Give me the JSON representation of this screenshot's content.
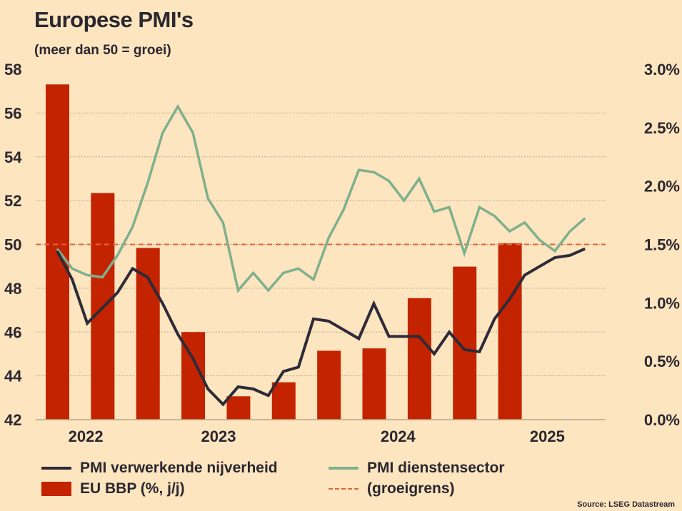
{
  "chart_data": {
    "type": "bar+line",
    "title": "Europese PMI's",
    "subtitle": "(meer dan 50 = groei)",
    "left_axis": {
      "ylim": [
        42,
        58
      ],
      "ticks": [
        "58",
        "56",
        "54",
        "52",
        "50",
        "48",
        "46",
        "44",
        "42"
      ]
    },
    "right_axis": {
      "ylim": [
        0,
        3
      ],
      "ticks": [
        "3.0%",
        "2.5%",
        "2.0%",
        "1.5%",
        "1.0%",
        "0.5%",
        "0.0%"
      ]
    },
    "x_tick_labels": [
      "2022",
      "2023",
      "2024",
      "2025"
    ],
    "grid": true,
    "threshold": {
      "name": "(groeigrens)",
      "value": 50
    },
    "bars": {
      "name": "EU BBP (%, j/j)",
      "color": "#c42300",
      "values": [
        2.87,
        1.94,
        1.47,
        0.75,
        0.2,
        0.32,
        0.59,
        0.61,
        1.04,
        1.31,
        1.51
      ]
    },
    "series": [
      {
        "name": "PMI verwerkende nijverheid",
        "color": "#2e2a38",
        "values": [
          49.7,
          48.4,
          46.4,
          47.1,
          47.8,
          48.9,
          48.5,
          47.3,
          45.9,
          44.8,
          43.4,
          42.7,
          43.5,
          43.4,
          43.1,
          44.2,
          44.4,
          46.6,
          46.5,
          46.1,
          45.7,
          47.3,
          45.8,
          45.8,
          45.8,
          45.0,
          46.0,
          45.2,
          45.1,
          46.6,
          47.5,
          48.6,
          49.0,
          49.4,
          49.5,
          49.8
        ]
      },
      {
        "name": "PMI dienstensector",
        "color": "#7fb08e",
        "values": [
          49.8,
          48.9,
          48.6,
          48.5,
          49.5,
          50.8,
          52.8,
          55.1,
          56.3,
          55.1,
          52.1,
          51.0,
          47.9,
          48.7,
          47.9,
          48.7,
          48.9,
          48.4,
          50.3,
          51.6,
          53.4,
          53.3,
          52.9,
          52.0,
          53.0,
          51.5,
          51.7,
          49.6,
          51.7,
          51.3,
          50.6,
          51.0,
          50.2,
          49.7,
          50.6,
          51.2
        ]
      }
    ],
    "legend_placement": "bottom"
  },
  "legend": {
    "manufacturing": "PMI verwerkende nijverheid",
    "services": "PMI dienstensector",
    "gdp": "EU BBP (%, j/j)",
    "threshold": "(groeigrens)"
  },
  "source": "Source: LSEG Datastream",
  "colors": {
    "background": "#fde5bf",
    "bar": "#c42300",
    "manufacturing": "#2e2a38",
    "services": "#7fb08e",
    "threshold": "#e0643c"
  }
}
